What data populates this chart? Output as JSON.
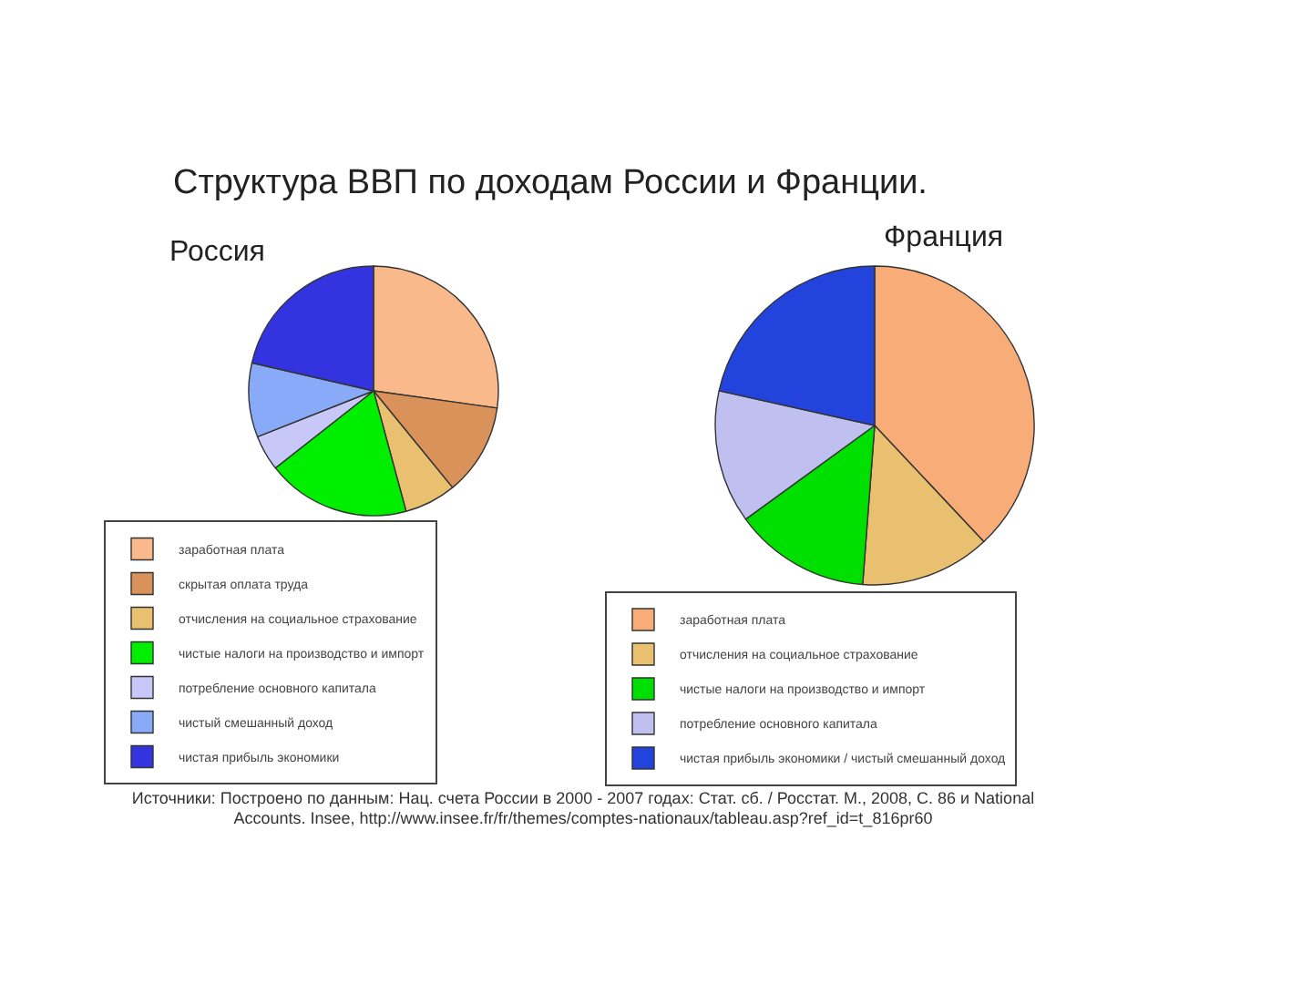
{
  "chart_data": [
    {
      "type": "pie",
      "title": "Структура ВВП по доходам России и Франции.",
      "subtitle": "Россия",
      "categories": [
        "заработная плата",
        "скрытая оплата труда",
        "отчисления на социальное страхование",
        "чистые налоги на производство и импорт",
        "потребление основного капитала",
        "чистый смешанный доход",
        "чистая прибыль экономики"
      ],
      "values": [
        27.2,
        11.9,
        6.7,
        18.6,
        4.6,
        9.6,
        21.4
      ],
      "colors": [
        "#f9b98a",
        "#d9925a",
        "#e8c070",
        "#00ee00",
        "#c8c8f8",
        "#88aaf8",
        "#3333e0"
      ],
      "legend": "bottom"
    },
    {
      "type": "pie",
      "title": "Франция",
      "categories": [
        "заработная плата",
        "отчисления на социальное страхование",
        "чистые налоги на производство и импорт",
        "потребление основного капитала",
        "чистая прибыль экономики / чистый смешанный доход"
      ],
      "values": [
        38,
        13.2,
        13.8,
        13.5,
        21.5
      ],
      "colors": [
        "#f8ad78",
        "#e8c070",
        "#00e000",
        "#c0c0f0",
        "#2244dd"
      ],
      "legend": "bottom",
      "annotations": [
        "Источники: Построено по данным: Нац. счета России в 2000 - 2007 годах: Стат. сб. / Росстат. М., 2008, С. 86 и National Accounts. Insee, http://www.insee.fr/fr/themes/comptes-nationaux/tableau.asp?ref_id=t_816pr60"
      ]
    }
  ]
}
